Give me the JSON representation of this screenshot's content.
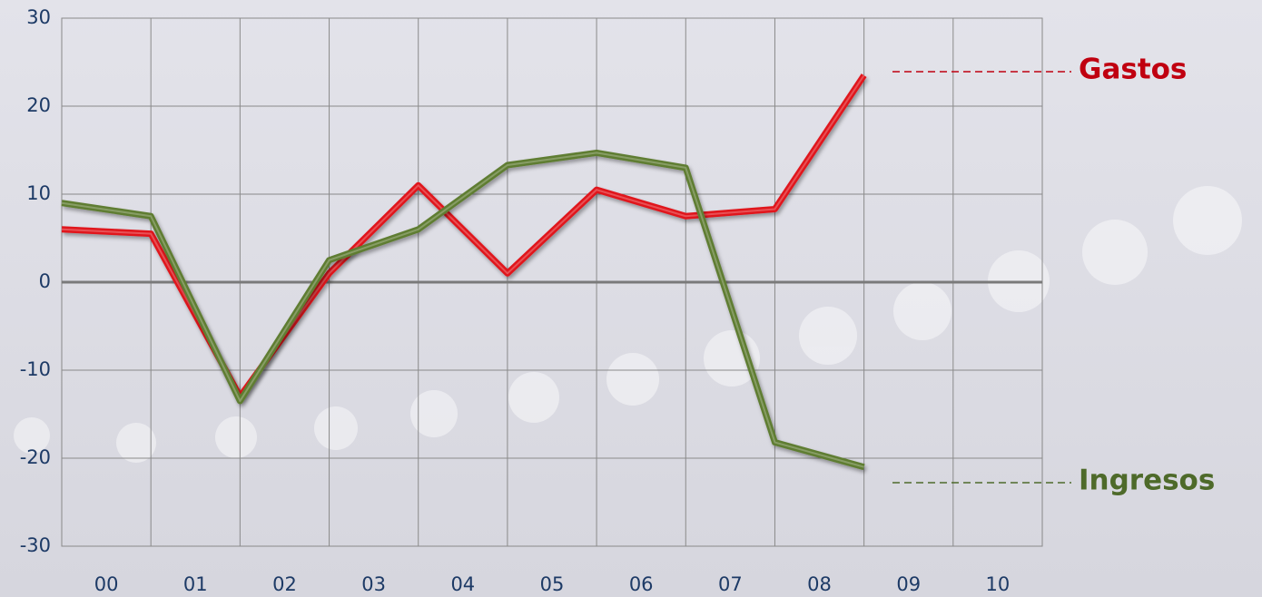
{
  "chart_data": {
    "type": "line",
    "categories": [
      "00",
      "01",
      "02",
      "03",
      "04",
      "05",
      "06",
      "07",
      "08",
      "09",
      "10"
    ],
    "series": [
      {
        "name": "Gastos",
        "color": "#e0141c",
        "values": [
          6,
          5.5,
          -13,
          1,
          11,
          1,
          10.5,
          7.5,
          8.3,
          23.5,
          null
        ]
      },
      {
        "name": "Ingresos",
        "color": "#5f7d32",
        "values": [
          9,
          7.5,
          -13.5,
          2.5,
          6,
          13.3,
          14.7,
          13,
          -18.2,
          -21,
          null
        ]
      }
    ],
    "ylim": [
      -30,
      30
    ],
    "yticks": [
      -30,
      -20,
      -10,
      0,
      10,
      20,
      30
    ],
    "grid": true
  }
}
